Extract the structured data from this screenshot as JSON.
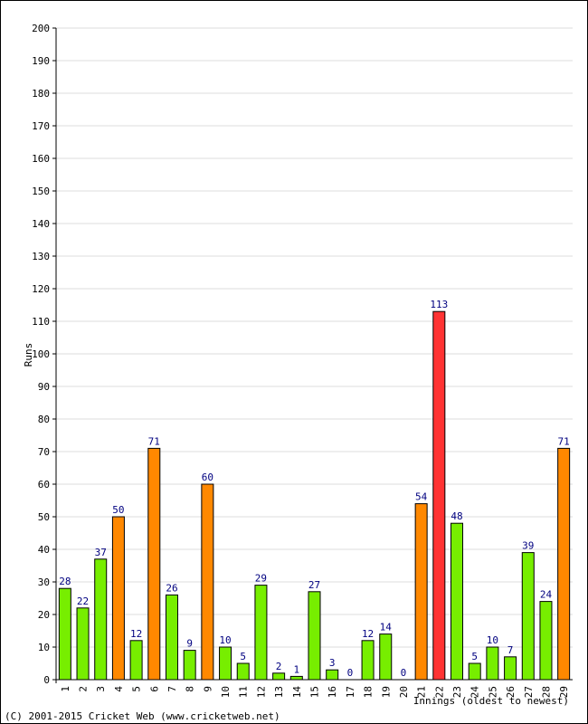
{
  "chart_data": {
    "type": "bar",
    "ylabel": "Runs",
    "xlabel": "Innings (oldest to newest)",
    "ylim": [
      0,
      200
    ],
    "ytick_step": 10,
    "grid": true,
    "categories": [
      "1",
      "2",
      "3",
      "4",
      "5",
      "6",
      "7",
      "8",
      "9",
      "10",
      "11",
      "12",
      "13",
      "14",
      "15",
      "16",
      "17",
      "18",
      "19",
      "20",
      "21",
      "22",
      "23",
      "24",
      "25",
      "26",
      "27",
      "28",
      "29"
    ],
    "values": [
      28,
      22,
      37,
      50,
      12,
      71,
      26,
      9,
      60,
      10,
      5,
      29,
      2,
      1,
      27,
      3,
      0,
      12,
      14,
      0,
      54,
      113,
      48,
      5,
      10,
      7,
      39,
      24,
      71
    ],
    "bar_kind": [
      "n",
      "n",
      "n",
      "f",
      "n",
      "f",
      "n",
      "n",
      "f",
      "n",
      "n",
      "n",
      "n",
      "n",
      "n",
      "n",
      "n",
      "n",
      "n",
      "n",
      "f",
      "c",
      "n",
      "n",
      "n",
      "n",
      "n",
      "n",
      "f"
    ],
    "colors": {
      "n": "#77ee00",
      "f": "#ff8800",
      "c": "#ff3333",
      "value_label": "#000080",
      "grid": "#dddddd",
      "axis": "#000000"
    }
  },
  "footer": {
    "copyright": "(C) 2001-2015 Cricket Web (www.cricketweb.net)"
  }
}
